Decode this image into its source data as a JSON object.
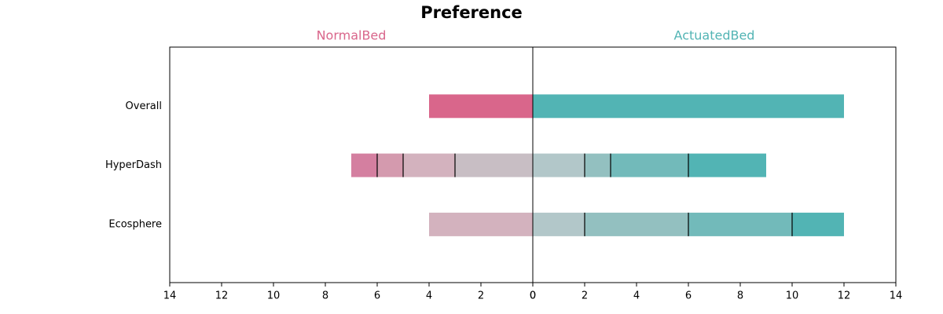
{
  "chart_data": {
    "type": "diverging-bar",
    "title": "Preference",
    "categories": [
      "Overall",
      "HyperDash",
      "Ecosphere"
    ],
    "left": {
      "label": "NormalBed",
      "label_color": "#d9668b",
      "series": [
        {
          "color": "#c8bec4",
          "values": [
            0,
            3,
            0
          ]
        },
        {
          "color": "#d3b2be",
          "values": [
            0,
            2,
            4
          ]
        },
        {
          "color": "#d49aae",
          "values": [
            0,
            1,
            0
          ]
        },
        {
          "color": "#d47fa0",
          "values": [
            0,
            1,
            0
          ]
        },
        {
          "color": "#d9668b",
          "values": [
            4,
            0,
            0
          ]
        }
      ]
    },
    "right": {
      "label": "ActuatedBed",
      "label_color": "#52b4b4",
      "series": [
        {
          "color": "#b2c7c9",
          "values": [
            0,
            2,
            2
          ]
        },
        {
          "color": "#93c0c0",
          "values": [
            0,
            1,
            4
          ]
        },
        {
          "color": "#72baba",
          "values": [
            0,
            3,
            4
          ]
        },
        {
          "color": "#52b4b4",
          "values": [
            12,
            3,
            2
          ]
        }
      ]
    },
    "xlim": [
      0,
      14
    ],
    "xticks": [
      0,
      2,
      4,
      6,
      8,
      10,
      12,
      14
    ]
  }
}
